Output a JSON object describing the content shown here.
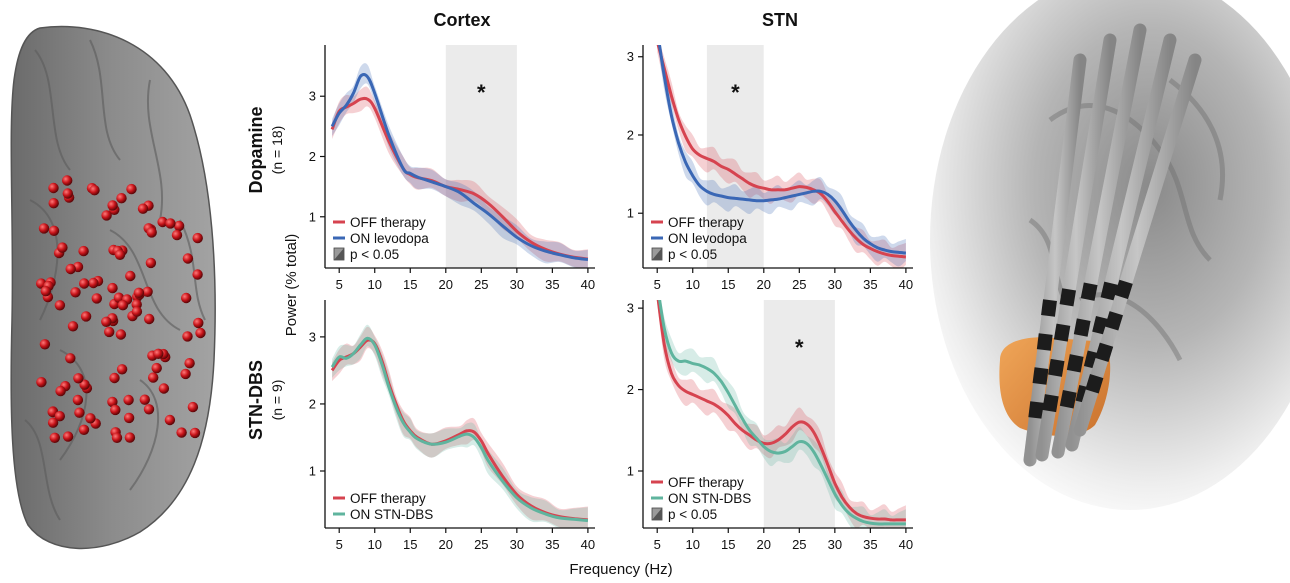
{
  "colors": {
    "off": "#d6434f",
    "on_levodopa": "#3a67b5",
    "on_dbs": "#5fb49e",
    "sig_band": "#ebebeb",
    "electrode": "#c8141a",
    "stn": "#e8862a"
  },
  "column_titles": [
    "Cortex",
    "STN"
  ],
  "row_titles": [
    {
      "title": "Dopamine",
      "sub": "(n = 18)"
    },
    {
      "title": "STN-DBS",
      "sub": "(n = 9)"
    }
  ],
  "axis": {
    "ylabel": "Power (% total)",
    "xlabel": "Frequency (Hz)"
  },
  "icons": {
    "brain": "cortex-electrode-brain",
    "stn": "stn-dbs-lead-render"
  },
  "chart_data": [
    {
      "type": "line",
      "name": "dopamine-cortex",
      "column": "Cortex",
      "row": "Dopamine",
      "x": [
        4,
        5,
        6,
        7,
        8,
        9,
        10,
        12,
        14,
        15,
        16,
        18,
        20,
        22,
        24,
        26,
        28,
        30,
        32,
        34,
        36,
        38,
        40
      ],
      "xticks": [
        5,
        10,
        15,
        20,
        25,
        30,
        35,
        40
      ],
      "yticks": [
        1,
        2,
        3
      ],
      "ylim": [
        0.15,
        3.85
      ],
      "sig_band": [
        20,
        30
      ],
      "annotation": "*",
      "series": [
        {
          "name": "OFF therapy",
          "color_key": "off",
          "values": [
            2.45,
            2.75,
            2.82,
            2.88,
            2.95,
            2.95,
            2.8,
            2.25,
            1.8,
            1.7,
            1.65,
            1.6,
            1.5,
            1.45,
            1.38,
            1.22,
            1.0,
            0.76,
            0.58,
            0.46,
            0.38,
            0.33,
            0.3
          ]
        },
        {
          "name": "ON levodopa",
          "color_key": "on_levodopa",
          "values": [
            2.5,
            2.72,
            2.85,
            3.05,
            3.33,
            3.32,
            3.05,
            2.35,
            1.8,
            1.72,
            1.66,
            1.58,
            1.5,
            1.4,
            1.22,
            1.05,
            0.85,
            0.66,
            0.52,
            0.43,
            0.37,
            0.32,
            0.29
          ]
        }
      ],
      "legend": [
        "OFF therapy",
        "ON levodopa",
        "p < 0.05"
      ]
    },
    {
      "type": "line",
      "name": "dopamine-stn",
      "column": "STN",
      "row": "Dopamine",
      "x": [
        5,
        6,
        7,
        8,
        9,
        10,
        11,
        12,
        13,
        14,
        15,
        16,
        17,
        18,
        19,
        20,
        21,
        22,
        23,
        24,
        25,
        26,
        27,
        28,
        29,
        30,
        31,
        32,
        33,
        34,
        35,
        36,
        37,
        38,
        39,
        40
      ],
      "xticks": [
        5,
        10,
        15,
        20,
        25,
        30,
        35,
        40
      ],
      "yticks": [
        1,
        2,
        3
      ],
      "ylim": [
        0.3,
        3.15
      ],
      "sig_band": [
        12,
        20
      ],
      "annotation": "*",
      "series": [
        {
          "name": "OFF therapy",
          "color_key": "off",
          "values": [
            3.2,
            2.85,
            2.5,
            2.2,
            1.98,
            1.82,
            1.74,
            1.7,
            1.66,
            1.6,
            1.56,
            1.5,
            1.44,
            1.38,
            1.34,
            1.32,
            1.3,
            1.3,
            1.3,
            1.32,
            1.34,
            1.33,
            1.3,
            1.25,
            1.15,
            1.02,
            0.9,
            0.78,
            0.68,
            0.6,
            0.55,
            0.51,
            0.48,
            0.46,
            0.45,
            0.44
          ]
        },
        {
          "name": "ON levodopa",
          "color_key": "on_levodopa",
          "values": [
            3.35,
            2.75,
            2.25,
            1.9,
            1.65,
            1.48,
            1.35,
            1.28,
            1.24,
            1.22,
            1.2,
            1.19,
            1.18,
            1.17,
            1.16,
            1.16,
            1.17,
            1.18,
            1.2,
            1.22,
            1.24,
            1.26,
            1.28,
            1.28,
            1.24,
            1.16,
            1.04,
            0.9,
            0.78,
            0.68,
            0.61,
            0.56,
            0.53,
            0.51,
            0.5,
            0.49
          ]
        }
      ],
      "legend": [
        "OFF therapy",
        "ON levodopa",
        "p < 0.05"
      ]
    },
    {
      "type": "line",
      "name": "dbs-cortex",
      "column": "Cortex",
      "row": "STN-DBS",
      "x": [
        4,
        5,
        6,
        7,
        8,
        9,
        10,
        11,
        12,
        13,
        14,
        15,
        16,
        18,
        20,
        22,
        23,
        24,
        25,
        26,
        28,
        30,
        32,
        34,
        36,
        38,
        40
      ],
      "xticks": [
        5,
        10,
        15,
        20,
        25,
        30,
        35,
        40
      ],
      "yticks": [
        1,
        2,
        3
      ],
      "ylim": [
        0.15,
        3.55
      ],
      "sig_band": null,
      "annotation": null,
      "series": [
        {
          "name": "OFF therapy",
          "color_key": "off",
          "values": [
            2.5,
            2.65,
            2.7,
            2.75,
            2.85,
            2.95,
            2.9,
            2.65,
            2.3,
            2.0,
            1.75,
            1.6,
            1.5,
            1.4,
            1.45,
            1.55,
            1.6,
            1.58,
            1.45,
            1.25,
            0.92,
            0.65,
            0.48,
            0.38,
            0.32,
            0.29,
            0.27
          ]
        },
        {
          "name": "ON STN-DBS",
          "color_key": "on_dbs",
          "values": [
            2.55,
            2.7,
            2.68,
            2.75,
            2.88,
            2.98,
            2.88,
            2.6,
            2.25,
            1.95,
            1.72,
            1.58,
            1.48,
            1.4,
            1.43,
            1.52,
            1.55,
            1.5,
            1.35,
            1.15,
            0.85,
            0.6,
            0.45,
            0.36,
            0.3,
            0.28,
            0.26
          ]
        }
      ],
      "legend": [
        "OFF therapy",
        "ON STN-DBS"
      ]
    },
    {
      "type": "line",
      "name": "dbs-stn",
      "column": "STN",
      "row": "STN-DBS",
      "x": [
        5,
        6,
        7,
        8,
        9,
        10,
        11,
        12,
        13,
        14,
        15,
        16,
        17,
        18,
        19,
        20,
        21,
        22,
        23,
        24,
        25,
        26,
        27,
        28,
        29,
        30,
        31,
        32,
        33,
        34,
        35,
        36,
        37,
        38,
        39,
        40
      ],
      "xticks": [
        5,
        10,
        15,
        20,
        25,
        30,
        35,
        40
      ],
      "yticks": [
        1,
        2,
        3
      ],
      "ylim": [
        0.3,
        3.1
      ],
      "sig_band": [
        20,
        30
      ],
      "annotation": "*",
      "series": [
        {
          "name": "OFF therapy",
          "color_key": "off",
          "values": [
            3.2,
            2.55,
            2.2,
            2.05,
            1.98,
            1.94,
            1.9,
            1.86,
            1.82,
            1.76,
            1.68,
            1.58,
            1.5,
            1.44,
            1.38,
            1.34,
            1.34,
            1.38,
            1.45,
            1.54,
            1.6,
            1.58,
            1.48,
            1.3,
            1.08,
            0.85,
            0.68,
            0.56,
            0.48,
            0.44,
            0.42,
            0.41,
            0.41,
            0.4,
            0.4,
            0.4
          ]
        },
        {
          "name": "ON STN-DBS",
          "color_key": "on_dbs",
          "values": [
            3.3,
            2.75,
            2.45,
            2.35,
            2.35,
            2.32,
            2.3,
            2.26,
            2.2,
            2.1,
            1.96,
            1.8,
            1.64,
            1.5,
            1.4,
            1.3,
            1.24,
            1.22,
            1.24,
            1.3,
            1.36,
            1.34,
            1.24,
            1.08,
            0.9,
            0.72,
            0.58,
            0.48,
            0.42,
            0.38,
            0.36,
            0.35,
            0.35,
            0.35,
            0.35,
            0.35
          ]
        }
      ],
      "legend": [
        "OFF therapy",
        "ON STN-DBS",
        "p < 0.05"
      ]
    }
  ]
}
